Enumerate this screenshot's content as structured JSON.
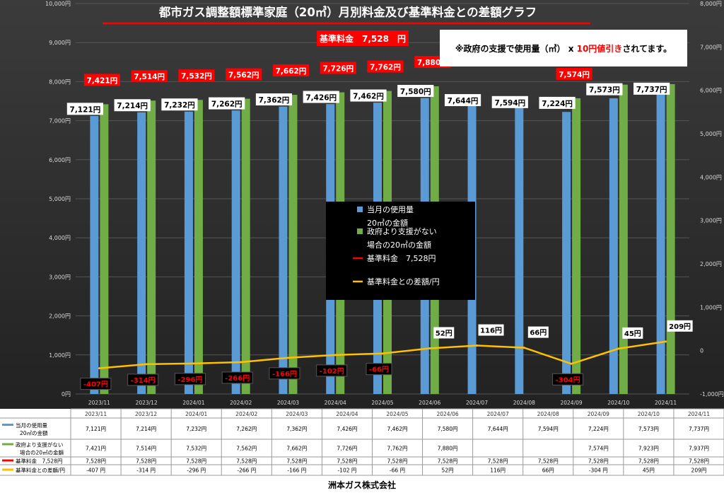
{
  "chart_data": {
    "type": "bar",
    "title": "都市ガス調整額標準家庭（20㎥）月別料金及び基準料金との差額グラフ",
    "base_banner": "基準料金　7,528　円",
    "note": {
      "prefix": "※政府の支援で使用量（㎥） x ",
      "highlight": "10円値引き",
      "suffix": "されてます。"
    },
    "categories": [
      "2023/11",
      "2023/12",
      "2024/01",
      "2024/02",
      "2024/03",
      "2024/04",
      "2024/05",
      "2024/06",
      "2024/07",
      "2024/08",
      "2024/09",
      "2024/10",
      "2024/11"
    ],
    "series": [
      {
        "name": "当月の使用量\n20㎥の金額",
        "values": [
          7121,
          7214,
          7232,
          7262,
          7362,
          7426,
          7462,
          7580,
          7644,
          7594,
          7224,
          7573,
          7737
        ],
        "color": "#5b9bd5"
      },
      {
        "name": "政府より支援がない\n場合の20㎥の金額",
        "values": [
          7421,
          7514,
          7532,
          7562,
          7662,
          7726,
          7762,
          7880,
          null,
          null,
          7574,
          7923,
          7937
        ],
        "color": "#70ad47"
      },
      {
        "name": "基準料金　7,528円",
        "values": [
          7528,
          7528,
          7528,
          7528,
          7528,
          7528,
          7528,
          7528,
          7528,
          7528,
          7528,
          7528,
          7528
        ],
        "color": "#ff0000"
      },
      {
        "name": "基準料金との差額/円",
        "values": [
          -407,
          -314,
          -296,
          -266,
          -166,
          -102,
          -66,
          52,
          116,
          66,
          -304,
          45,
          209
        ],
        "color": "#ffc000"
      }
    ],
    "y_left": {
      "min": 0,
      "max": 10000,
      "ticks": [
        "0円",
        "1,000円",
        "2,000円",
        "3,000円",
        "4,000円",
        "5,000円",
        "6,000円",
        "7,000円",
        "8,000円",
        "9,000円",
        "10,000円"
      ]
    },
    "y_right": {
      "min": -1000,
      "max": 8000,
      "ticks": [
        "-1,000円",
        "0",
        "1,000円",
        "2,000円",
        "3,000円",
        "4,000円",
        "5,000円",
        "6,000円",
        "7,000円",
        "8,000円"
      ]
    },
    "legend": {
      "placement": "center",
      "labels": [
        "当月の使用量\n20㎥の金額",
        "政府より支援がない\n場合の20㎥の金額",
        "基準料金　7,528円",
        "基準料金との差額/円"
      ]
    },
    "table": {
      "header": [
        "2023/11",
        "2023/12",
        "2024/01",
        "2024/02",
        "2024/03",
        "2024/04",
        "2024/05",
        "2024/06",
        "2024/07",
        "2024/08",
        "2024/09",
        "2024/10",
        "2024/11"
      ],
      "rows": [
        {
          "label": "当月の使用量\n20㎥の金額",
          "color": "#5b9bd5",
          "cells": [
            "7,121円",
            "7,214円",
            "7,232円",
            "7,262円",
            "7,362円",
            "7,426円",
            "7,462円",
            "7,580円",
            "7,644円",
            "7,594円",
            "7,224円",
            "7,573円",
            "7,737円"
          ]
        },
        {
          "label": "政府より支援がない\n場合の20㎥の金額",
          "color": "#70ad47",
          "cells": [
            "7,421円",
            "7,514円",
            "7,532円",
            "7,562円",
            "7,662円",
            "7,726円",
            "7,762円",
            "7,880円",
            "",
            "",
            "7,574円",
            "7,923円",
            "7,937円"
          ]
        },
        {
          "label": "基準料金　7,528円",
          "color": "#ff0000",
          "cells": [
            "7,528円",
            "7,528円",
            "7,528円",
            "7,528円",
            "7,528円",
            "7,528円",
            "7,528円",
            "7,528円",
            "7,528円",
            "7,528円",
            "7,528円",
            "7,528円",
            "7,528円"
          ]
        },
        {
          "label": "基準料金との差額/円",
          "color": "#ffc000",
          "cells": [
            "-407 円",
            "-314 円",
            "-296 円",
            "-266 円",
            "-166 円",
            "-102 円",
            "-66 円",
            "52円",
            "116円",
            "66円",
            "-304 円",
            "45円",
            "209円"
          ]
        }
      ]
    }
  },
  "footer": {
    "company": "洲本ガス株式会社"
  }
}
